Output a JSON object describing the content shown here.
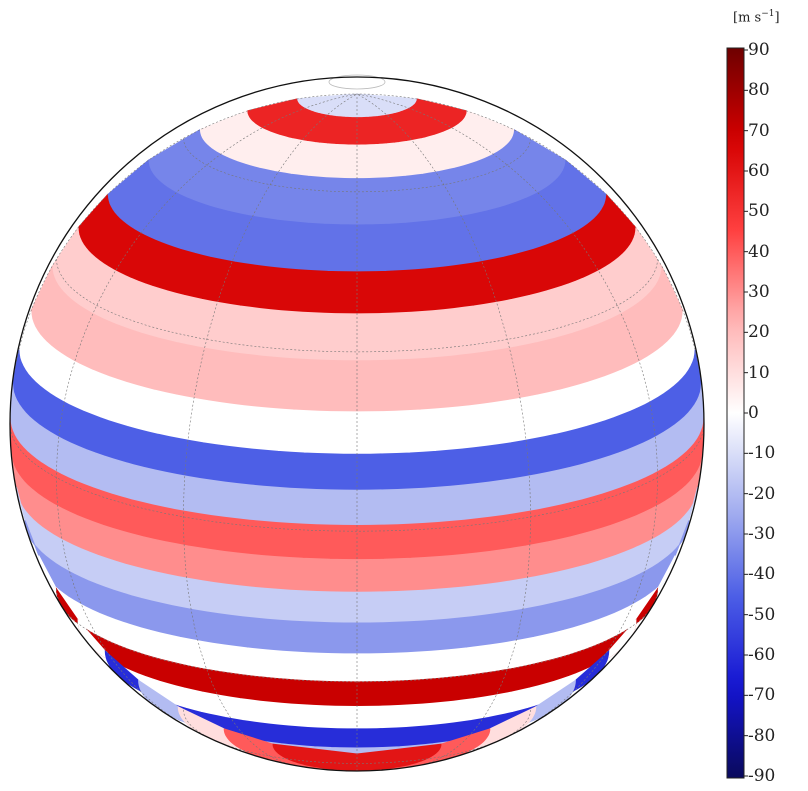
{
  "colorbar": {
    "unit_prefix": "[m s",
    "unit_exponent": "−1",
    "unit_suffix": "]",
    "ticks": [
      "90",
      "80",
      "70",
      "60",
      "50",
      "40",
      "30",
      "20",
      "10",
      "0",
      "-10",
      "-20",
      "-30",
      "-40",
      "-50",
      "-60",
      "-70",
      "-80",
      "-90"
    ],
    "range": [
      -90,
      90
    ],
    "colormap": [
      "#0a0a5c",
      "#1414d2",
      "#4d5fe6",
      "#aab4f0",
      "#ffffff",
      "#ffb4b4",
      "#ff4040",
      "#d40000",
      "#6e0000"
    ]
  },
  "globe": {
    "bands": [
      {
        "lat": 85,
        "value": -10
      },
      {
        "lat": 75,
        "value": 55
      },
      {
        "lat": 68,
        "value": 5
      },
      {
        "lat": 58,
        "value": -35
      },
      {
        "lat": 48,
        "value": -40
      },
      {
        "lat": 40,
        "value": 65
      },
      {
        "lat": 33,
        "value": 15
      },
      {
        "lat": 24,
        "value": 20
      },
      {
        "lat": 16,
        "value": 0
      },
      {
        "lat": 10,
        "value": -45
      },
      {
        "lat": 4,
        "value": -20
      },
      {
        "lat": -2,
        "value": 40
      },
      {
        "lat": -8,
        "value": 30
      },
      {
        "lat": -14,
        "value": -15
      },
      {
        "lat": -20,
        "value": -30
      },
      {
        "lat": -27,
        "value": 0
      },
      {
        "lat": -33,
        "value": 70
      },
      {
        "lat": -40,
        "value": 0
      },
      {
        "lat": -47,
        "value": -60
      },
      {
        "lat": -55,
        "value": -20
      },
      {
        "lat": -63,
        "value": 10
      },
      {
        "lat": -72,
        "value": 40
      },
      {
        "lat": -80,
        "value": 60
      }
    ]
  }
}
